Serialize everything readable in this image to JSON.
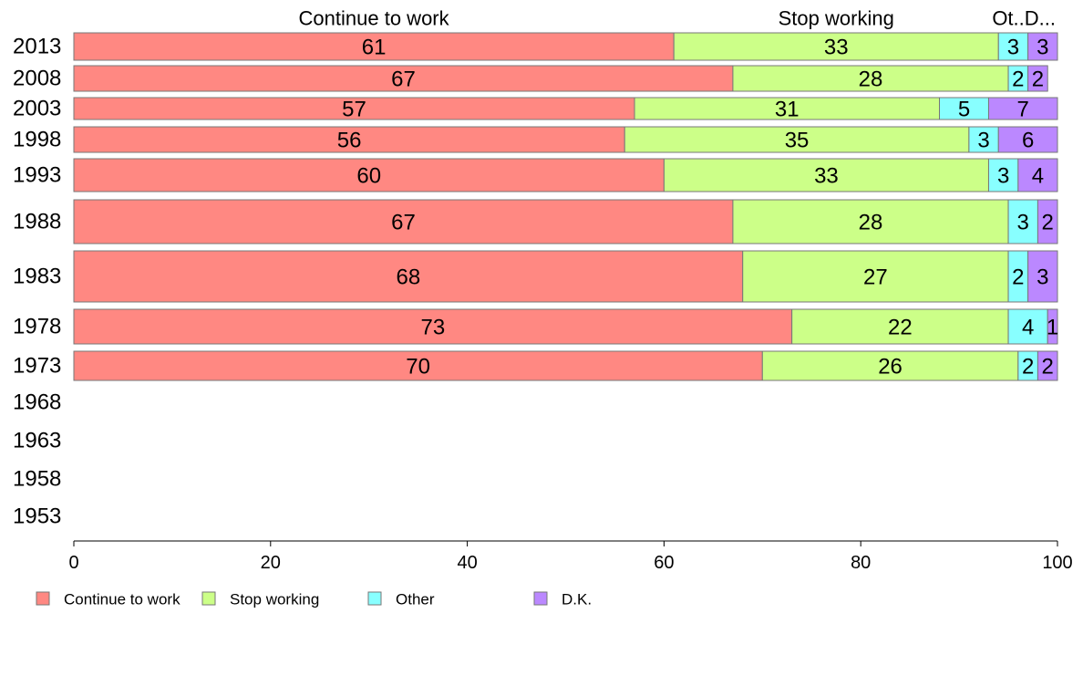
{
  "chart_data": {
    "type": "bar",
    "orientation": "horizontal",
    "stacked": true,
    "categories": [
      "2013",
      "2008",
      "2003",
      "1998",
      "1993",
      "1988",
      "1983",
      "1978",
      "1973",
      "1968",
      "1963",
      "1958",
      "1953"
    ],
    "series": [
      {
        "name": "Continue to work",
        "color": "#FF8882",
        "values": [
          61,
          67,
          57,
          56,
          60,
          67,
          68,
          73,
          70,
          null,
          null,
          null,
          null
        ]
      },
      {
        "name": "Stop working",
        "color": "#CCFF88",
        "values": [
          33,
          28,
          31,
          35,
          33,
          28,
          27,
          22,
          26,
          null,
          null,
          null,
          null
        ]
      },
      {
        "name": "Other",
        "color": "#88FFFF",
        "values": [
          3,
          2,
          5,
          3,
          3,
          3,
          2,
          4,
          2,
          null,
          null,
          null,
          null
        ]
      },
      {
        "name": "D.K.",
        "color": "#BB88FF",
        "values": [
          3,
          2,
          7,
          6,
          4,
          2,
          3,
          1,
          2,
          null,
          null,
          null,
          null
        ]
      }
    ],
    "top_labels": [
      "Continue to work",
      "Stop working",
      "Ot..D..."
    ],
    "x_ticks": [
      "0",
      "20",
      "40",
      "60",
      "80",
      "100"
    ],
    "xlim": [
      0,
      100
    ],
    "grid": false,
    "legend_position": "bottom-left"
  }
}
